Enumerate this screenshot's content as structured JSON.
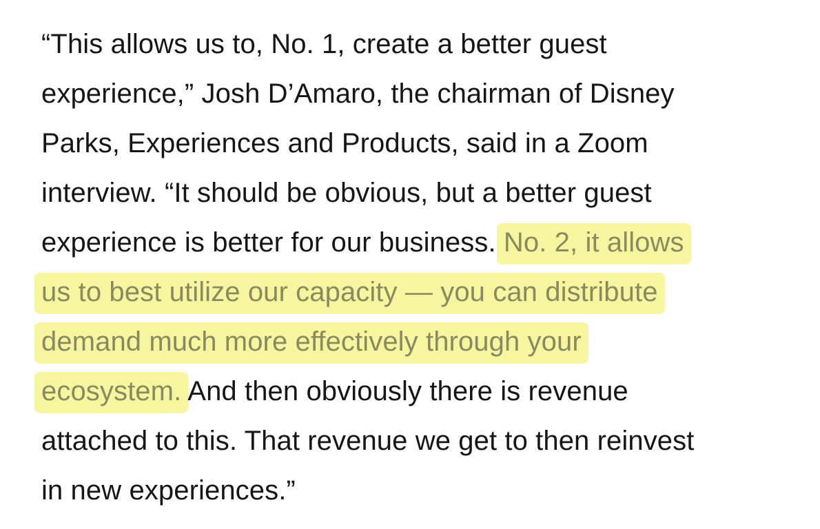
{
  "article": {
    "lines": [
      {
        "text": "“This allows us to, No. 1, create a better guest"
      },
      {
        "text": "experience,” Josh D’Amaro, the chairman of Disney"
      },
      {
        "text": "Parks, Experiences and Products, said in a Zoom"
      },
      {
        "text": "interview. “It should be obvious, but a better guest"
      },
      {
        "before": "experience is better for our business. ",
        "highlight": "No. 2, it allows"
      },
      {
        "highlight": "us to best utilize our capacity — you can distribute"
      },
      {
        "highlight": "demand much more effectively through your"
      },
      {
        "highlight": "ecosystem.",
        "after": " And then obviously there is revenue"
      },
      {
        "text": "attached to this. That revenue we get to then reinvest"
      },
      {
        "text": "in new experiences.”"
      }
    ]
  },
  "colors": {
    "text": "#161616",
    "highlight_background": "#f7f5a0",
    "highlight_text": "#8a8a5e"
  }
}
